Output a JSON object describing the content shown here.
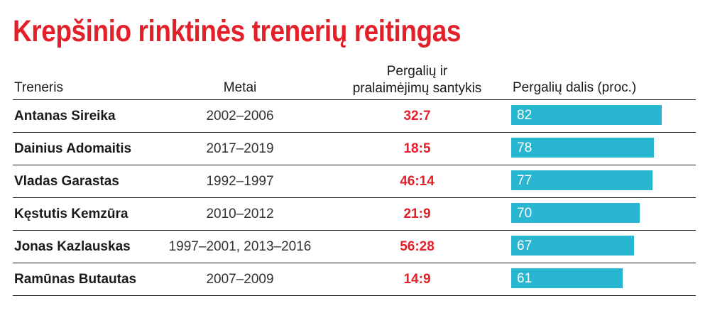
{
  "title": "Krepšinio rinktinės trenerių reitingas",
  "headers": {
    "coach": "Treneris",
    "years": "Metai",
    "ratio_line1": "Pergalių ir",
    "ratio_line2": "pralaimėjimų santykis",
    "share": "Pergalių dalis (proc.)"
  },
  "colors": {
    "title": "#e3202a",
    "ratio": "#e3202a",
    "bar": "#29b6d1"
  },
  "chart_data": {
    "type": "table",
    "title": "Krepšinio rinktinės trenerių reitingas",
    "columns": [
      "Treneris",
      "Metai",
      "Pergalių ir pralaimėjimų santykis",
      "Pergalių dalis (proc.)"
    ],
    "max_value": 100,
    "rows": [
      {
        "name": "Antanas Sireika",
        "years": "2002–2006",
        "ratio": "32:7",
        "share": 82
      },
      {
        "name": "Dainius Adomaitis",
        "years": "2017–2019",
        "ratio": "18:5",
        "share": 78
      },
      {
        "name": "Vladas Garastas",
        "years": "1992–1997",
        "ratio": "46:14",
        "share": 77
      },
      {
        "name": "Kęstutis Kemzūra",
        "years": "2010–2012",
        "ratio": "21:9",
        "share": 70
      },
      {
        "name": "Jonas Kazlauskas",
        "years": "1997–2001, 2013–2016",
        "ratio": "56:28",
        "share": 67
      },
      {
        "name": "Ramūnas Butautas",
        "years": "2007–2009",
        "ratio": "14:9",
        "share": 61
      }
    ]
  }
}
